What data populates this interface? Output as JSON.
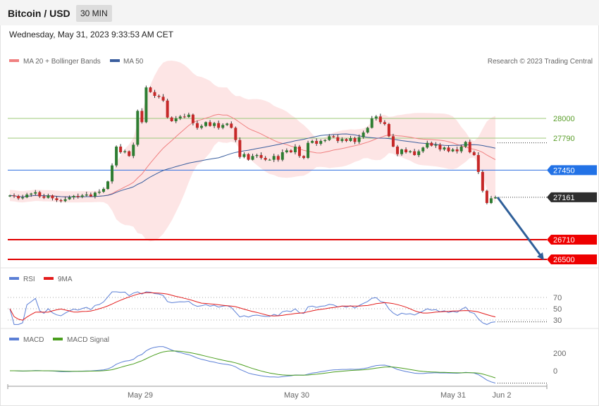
{
  "header": {
    "title": "Bitcoin / USD",
    "timeframe": "30 MIN"
  },
  "datetime": "Wednesday, May 31, 2023 9:33:53 AM CET",
  "credit": "Research © 2023 Trading Central",
  "colors": {
    "up": "#2e7d32",
    "down": "#c62828",
    "bb_fill": "#fde0e0",
    "ma20": "#f08080",
    "ma50": "#3a5e9e",
    "rsi": "#5b7fd6",
    "rsi_ma": "#e31b1b",
    "macd": "#5b7fd6",
    "macd_signal": "#4a9e1e",
    "arrow": "#2f5f99"
  },
  "chart_data": [
    {
      "type": "candlestick",
      "title": "Bitcoin / USD",
      "legend": [
        "MA 20 + Bollinger Bands",
        "MA 50"
      ],
      "x_labels": [
        "May 29",
        "May 30",
        "May 31",
        "Jun 2"
      ],
      "ylim": [
        26420,
        28190
      ],
      "closes": [
        27180,
        27175,
        27150,
        27160,
        27190,
        27200,
        27215,
        27170,
        27155,
        27180,
        27150,
        27130,
        27120,
        27140,
        27160,
        27175,
        27165,
        27180,
        27190,
        27170,
        27210,
        27220,
        27250,
        27330,
        27500,
        27700,
        27640,
        27650,
        27600,
        27720,
        28080,
        27960,
        28330,
        28280,
        28240,
        28230,
        28190,
        28010,
        27970,
        28000,
        28020,
        28015,
        28040,
        27950,
        27900,
        27920,
        27960,
        27920,
        27950,
        27900,
        27930,
        27945,
        27900,
        27770,
        27590,
        27620,
        27560,
        27600,
        27610,
        27580,
        27560,
        27560,
        27600,
        27560,
        27640,
        27660,
        27640,
        27700,
        27600,
        27580,
        27740,
        27760,
        27730,
        27760,
        27770,
        27810,
        27800,
        27760,
        27780,
        27760,
        27790,
        27750,
        27800,
        27850,
        27900,
        28000,
        28020,
        27960,
        27940,
        27810,
        27700,
        27620,
        27670,
        27640,
        27650,
        27610,
        27650,
        27690,
        27740,
        27710,
        27720,
        27670,
        27690,
        27650,
        27670,
        27650,
        27700,
        27750,
        27640,
        27610,
        27430,
        27230,
        27100,
        27150,
        27161
      ],
      "overlays": [
        "MA 20",
        "Bollinger Bands",
        "MA 50"
      ],
      "price_levels": [
        {
          "value": 28000,
          "label": "28000",
          "style": "green-line"
        },
        {
          "value": 27790,
          "label": "27790",
          "style": "green-line"
        },
        {
          "value": 27450,
          "label": "27450",
          "style": "blue-tag"
        },
        {
          "value": 27161,
          "label": "27161",
          "style": "last-price"
        },
        {
          "value": 26710,
          "label": "26710",
          "style": "red-tag"
        },
        {
          "value": 26500,
          "label": "26500",
          "style": "red-tag"
        }
      ],
      "forecast_arrow": {
        "from": 27161,
        "to": 26500,
        "direction": "down"
      }
    },
    {
      "type": "line",
      "title": "",
      "legend": [
        "RSI",
        "9MA"
      ],
      "ylim": [
        18,
        82
      ],
      "y_ticks": [
        70,
        50,
        30
      ],
      "tick_labels": [
        "70",
        "50",
        "30"
      ],
      "reference_lines": [
        70,
        50,
        30
      ]
    },
    {
      "type": "line",
      "title": "",
      "legend": [
        "MACD",
        "MACD Signal"
      ],
      "ylim": [
        -160,
        340
      ],
      "y_ticks": [
        200,
        0
      ],
      "tick_labels": [
        "200",
        "0"
      ]
    }
  ]
}
